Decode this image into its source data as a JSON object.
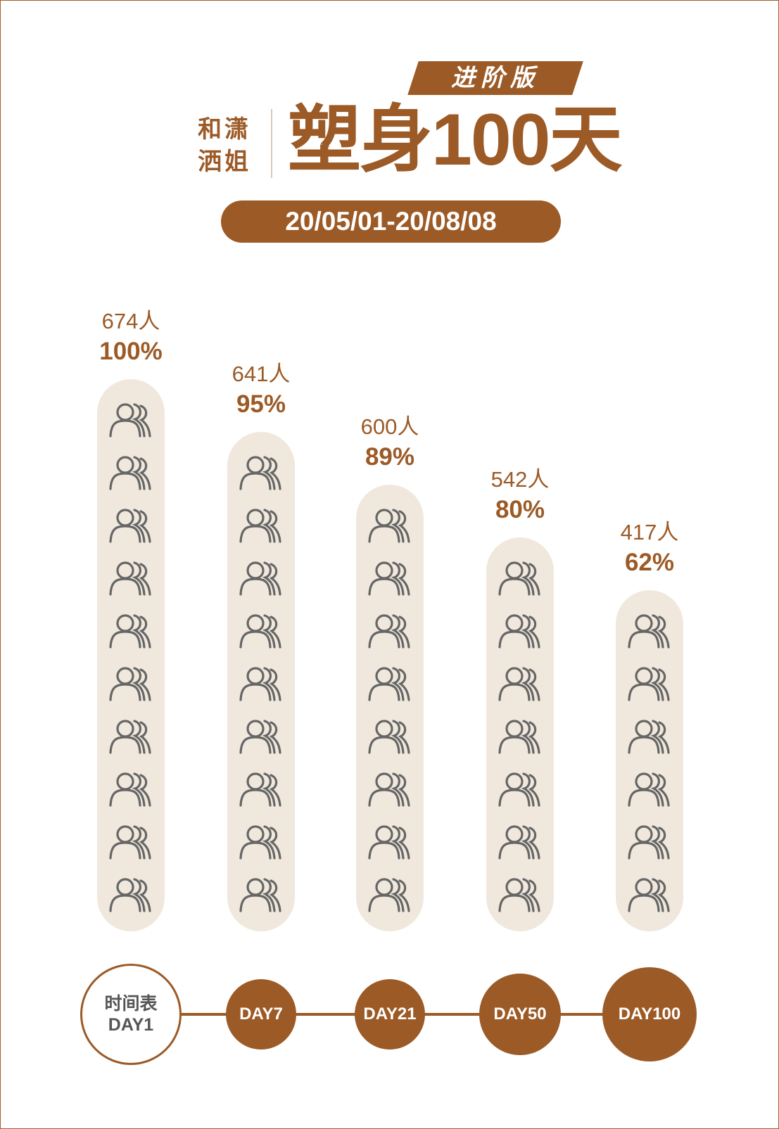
{
  "header": {
    "brand_line1": "和潇",
    "brand_line2": "洒姐",
    "title": "塑身100天",
    "edition": "进阶版",
    "date_range": "20/05/01-20/08/08"
  },
  "colors": {
    "accent": "#9c5a26",
    "bar_fill": "#f0e8dd",
    "icon": "#666666",
    "text_muted": "#555555"
  },
  "icon_name": "group-people-icon",
  "chart_data": {
    "type": "bar",
    "categories": [
      "DAY1",
      "DAY7",
      "DAY21",
      "DAY50",
      "DAY100"
    ],
    "series": [
      {
        "values": [
          674,
          641,
          600,
          542,
          417
        ]
      }
    ],
    "count_labels": [
      "674人",
      "641人",
      "600人",
      "542人",
      "417人"
    ],
    "percent_labels": [
      "100%",
      "95%",
      "89%",
      "80%",
      "62%"
    ],
    "icons_per_bar": [
      10,
      9,
      8,
      7,
      6
    ],
    "ylim": [
      0,
      674
    ]
  },
  "timeline": {
    "first_label_top": "时间表",
    "items": [
      "DAY1",
      "DAY7",
      "DAY21",
      "DAY50",
      "DAY100"
    ]
  }
}
